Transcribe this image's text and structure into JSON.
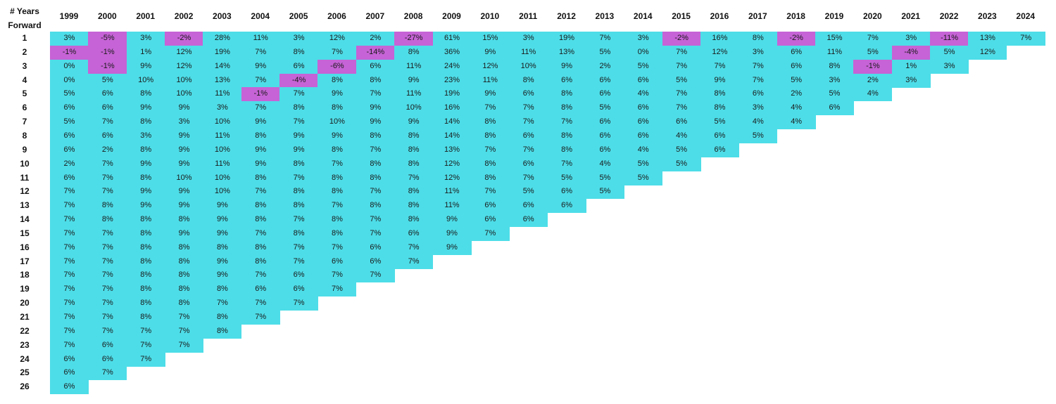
{
  "header_label_line1": "# Years",
  "header_label_line2": "Forward",
  "colors": {
    "positive": "#4ddde8",
    "negative": "#c663d6"
  },
  "chart_data": {
    "type": "table",
    "years": [
      "1999",
      "2000",
      "2001",
      "2002",
      "2003",
      "2004",
      "2005",
      "2006",
      "2007",
      "2008",
      "2009",
      "2010",
      "2011",
      "2012",
      "2013",
      "2014",
      "2015",
      "2016",
      "2017",
      "2018",
      "2019",
      "2020",
      "2021",
      "2022",
      "2023",
      "2024"
    ],
    "rows": [
      "1",
      "2",
      "3",
      "4",
      "5",
      "6",
      "7",
      "8",
      "9",
      "10",
      "11",
      "12",
      "13",
      "14",
      "15",
      "16",
      "17",
      "18",
      "19",
      "20",
      "21",
      "22",
      "23",
      "24",
      "25",
      "26"
    ],
    "columns": [
      [
        "3%",
        "-1%",
        "0%",
        "0%",
        "5%",
        "6%",
        "5%",
        "6%",
        "6%",
        "2%",
        "6%",
        "7%",
        "7%",
        "7%",
        "7%",
        "7%",
        "7%",
        "7%",
        "7%",
        "7%",
        "7%",
        "7%",
        "7%",
        "6%",
        "6%",
        "6%"
      ],
      [
        "-5%",
        "-1%",
        "-1%",
        "5%",
        "6%",
        "6%",
        "7%",
        "6%",
        "2%",
        "7%",
        "7%",
        "7%",
        "8%",
        "8%",
        "7%",
        "7%",
        "7%",
        "7%",
        "7%",
        "7%",
        "7%",
        "7%",
        "6%",
        "6%",
        "7%"
      ],
      [
        "3%",
        "1%",
        "9%",
        "10%",
        "8%",
        "9%",
        "8%",
        "3%",
        "8%",
        "9%",
        "8%",
        "9%",
        "9%",
        "8%",
        "8%",
        "8%",
        "8%",
        "8%",
        "8%",
        "8%",
        "8%",
        "7%",
        "7%",
        "7%"
      ],
      [
        "-2%",
        "12%",
        "12%",
        "10%",
        "10%",
        "9%",
        "3%",
        "9%",
        "9%",
        "9%",
        "10%",
        "9%",
        "9%",
        "8%",
        "9%",
        "8%",
        "8%",
        "8%",
        "8%",
        "8%",
        "7%",
        "7%",
        "7%"
      ],
      [
        "28%",
        "19%",
        "14%",
        "13%",
        "11%",
        "3%",
        "10%",
        "11%",
        "10%",
        "11%",
        "10%",
        "10%",
        "9%",
        "9%",
        "9%",
        "8%",
        "9%",
        "9%",
        "8%",
        "7%",
        "8%",
        "8%"
      ],
      [
        "11%",
        "7%",
        "9%",
        "7%",
        "-1%",
        "7%",
        "9%",
        "8%",
        "9%",
        "9%",
        "8%",
        "7%",
        "8%",
        "8%",
        "7%",
        "8%",
        "8%",
        "7%",
        "6%",
        "7%",
        "7%"
      ],
      [
        "3%",
        "8%",
        "6%",
        "-4%",
        "7%",
        "8%",
        "7%",
        "9%",
        "9%",
        "8%",
        "7%",
        "8%",
        "8%",
        "7%",
        "8%",
        "7%",
        "7%",
        "6%",
        "6%",
        "7%"
      ],
      [
        "12%",
        "7%",
        "-6%",
        "8%",
        "9%",
        "8%",
        "10%",
        "9%",
        "8%",
        "7%",
        "8%",
        "8%",
        "7%",
        "8%",
        "8%",
        "7%",
        "6%",
        "7%",
        "7%"
      ],
      [
        "2%",
        "-14%",
        "6%",
        "8%",
        "7%",
        "9%",
        "9%",
        "8%",
        "7%",
        "8%",
        "8%",
        "7%",
        "8%",
        "7%",
        "7%",
        "6%",
        "6%",
        "7%"
      ],
      [
        "-27%",
        "8%",
        "11%",
        "9%",
        "11%",
        "10%",
        "9%",
        "8%",
        "8%",
        "8%",
        "7%",
        "8%",
        "8%",
        "8%",
        "6%",
        "7%",
        "7%"
      ],
      [
        "61%",
        "36%",
        "24%",
        "23%",
        "19%",
        "16%",
        "14%",
        "14%",
        "13%",
        "12%",
        "12%",
        "11%",
        "11%",
        "9%",
        "9%",
        "9%"
      ],
      [
        "15%",
        "9%",
        "12%",
        "11%",
        "9%",
        "7%",
        "8%",
        "8%",
        "7%",
        "8%",
        "8%",
        "7%",
        "6%",
        "6%",
        "7%"
      ],
      [
        "3%",
        "11%",
        "10%",
        "8%",
        "6%",
        "7%",
        "7%",
        "6%",
        "7%",
        "6%",
        "7%",
        "5%",
        "6%",
        "6%"
      ],
      [
        "19%",
        "13%",
        "9%",
        "6%",
        "8%",
        "8%",
        "7%",
        "8%",
        "8%",
        "7%",
        "5%",
        "6%",
        "6%"
      ],
      [
        "7%",
        "5%",
        "2%",
        "6%",
        "6%",
        "5%",
        "6%",
        "6%",
        "6%",
        "4%",
        "5%",
        "5%"
      ],
      [
        "3%",
        "0%",
        "5%",
        "6%",
        "4%",
        "6%",
        "6%",
        "6%",
        "4%",
        "5%",
        "5%"
      ],
      [
        "-2%",
        "7%",
        "7%",
        "5%",
        "7%",
        "7%",
        "6%",
        "4%",
        "5%",
        "5%"
      ],
      [
        "16%",
        "12%",
        "7%",
        "9%",
        "8%",
        "8%",
        "5%",
        "6%",
        "6%"
      ],
      [
        "8%",
        "3%",
        "7%",
        "7%",
        "6%",
        "3%",
        "4%",
        "5%"
      ],
      [
        "-2%",
        "6%",
        "6%",
        "5%",
        "2%",
        "4%",
        "4%"
      ],
      [
        "15%",
        "11%",
        "8%",
        "3%",
        "5%",
        "6%"
      ],
      [
        "7%",
        "5%",
        "-1%",
        "2%",
        "4%"
      ],
      [
        "3%",
        "-4%",
        "1%",
        "3%"
      ],
      [
        "-11%",
        "5%",
        "3%"
      ],
      [
        "13%",
        "12%"
      ],
      [
        "7%"
      ]
    ]
  }
}
